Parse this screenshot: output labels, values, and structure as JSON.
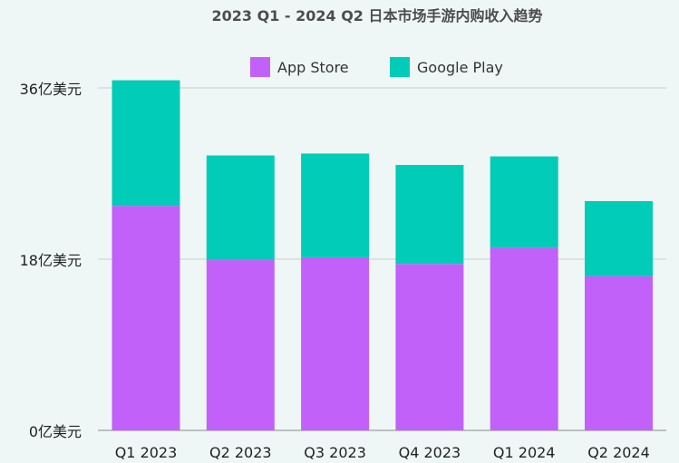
{
  "chart_data": {
    "type": "bar",
    "stacked": true,
    "title": "2023 Q1 - 2024 Q2 日本市场手游内购收入趋势",
    "categories": [
      "Q1 2023",
      "Q2 2023",
      "Q3 2023",
      "Q4 2023",
      "Q1 2024",
      "Q2 2024"
    ],
    "series": [
      {
        "name": "App Store",
        "color": "#c261fa",
        "values": [
          23.6,
          17.9,
          18.2,
          17.5,
          19.2,
          16.2
        ]
      },
      {
        "name": "Google Play",
        "color": "#00ccb7",
        "values": [
          13.2,
          11.0,
          10.9,
          10.4,
          9.6,
          7.9
        ]
      }
    ],
    "yticks": [
      0,
      18,
      36
    ],
    "ytick_labels": [
      "0亿美元",
      "18亿美元",
      "36亿美元"
    ],
    "ylim": [
      0,
      36
    ],
    "grid": true,
    "legend_position": "top"
  }
}
